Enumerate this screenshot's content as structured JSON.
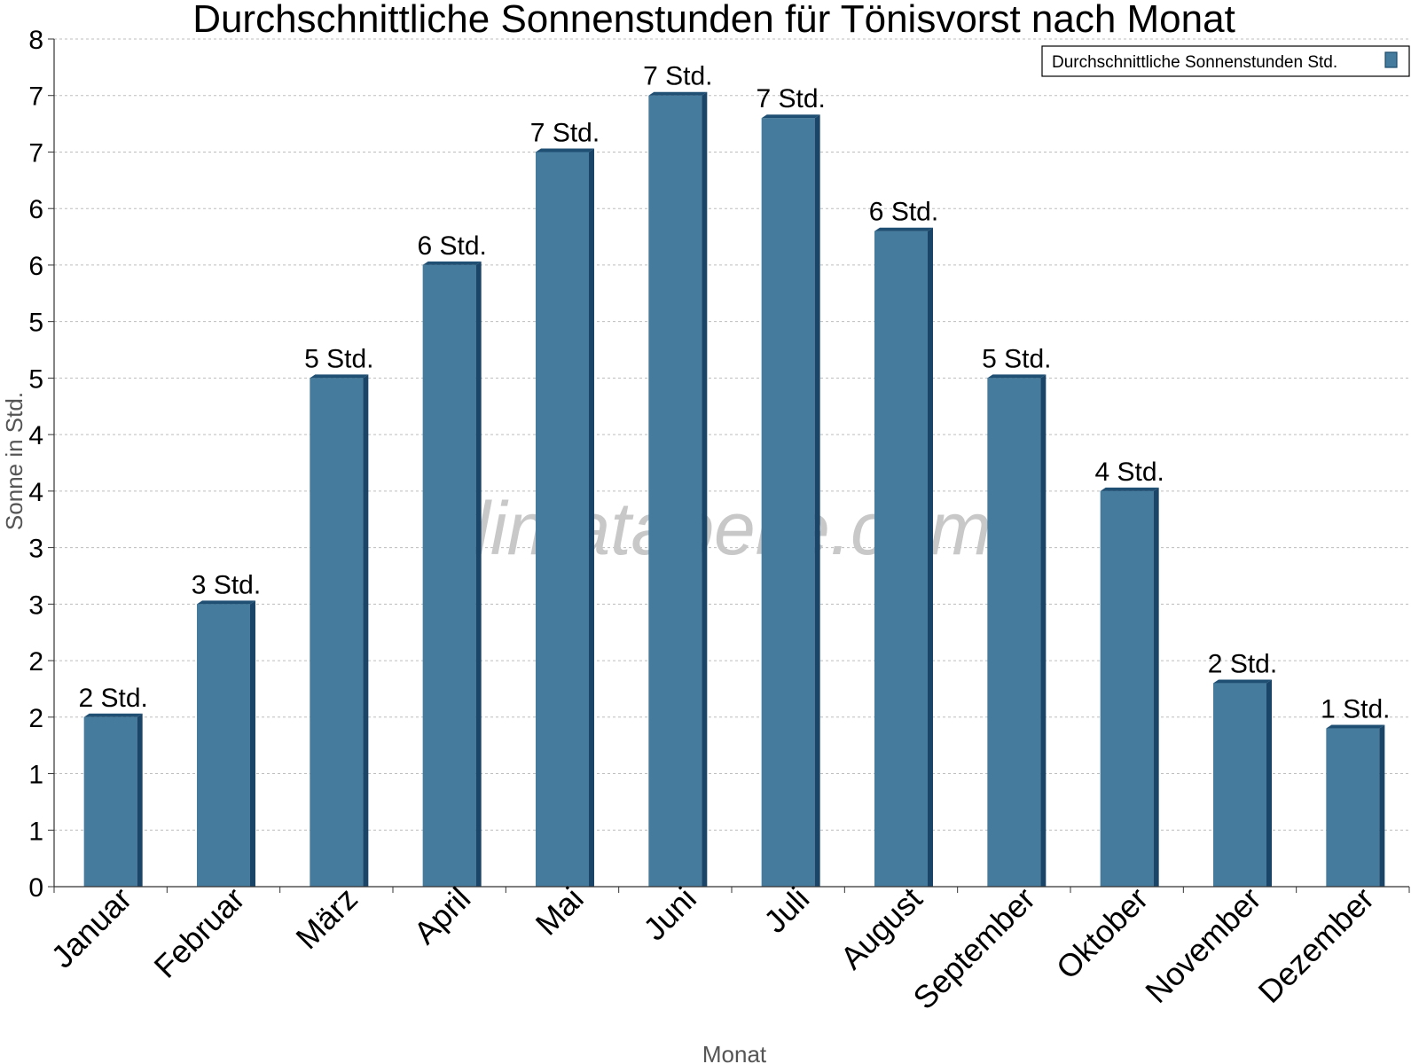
{
  "watermark": "klimatabelle.com",
  "chart_data": {
    "type": "bar",
    "title": "Durchschnittliche Sonnenstunden für Tönisvorst nach Monat",
    "xlabel": "Monat",
    "ylabel": "Sonne in Std.",
    "ylim": [
      0,
      7.5
    ],
    "yticks": [
      0,
      0.5,
      1,
      1.5,
      2,
      2.5,
      3,
      3.5,
      4,
      4.5,
      5,
      5.5,
      6,
      6.5,
      7,
      7.5
    ],
    "ytick_labels": [
      "0",
      "1",
      "1",
      "2",
      "2",
      "3",
      "3",
      "4",
      "4",
      "5",
      "5",
      "6",
      "6",
      "7",
      "7",
      "8"
    ],
    "grid": true,
    "legend_position": "top-right",
    "categories": [
      "Januar",
      "Februar",
      "März",
      "April",
      "Mai",
      "Juni",
      "Juli",
      "August",
      "September",
      "Oktober",
      "November",
      "Dezember"
    ],
    "series": [
      {
        "name": "Durchschnittliche Sonnenstunden Std.",
        "color": "#457b9d",
        "values": [
          1.5,
          2.5,
          4.5,
          5.5,
          6.5,
          7.0,
          6.8,
          5.8,
          4.5,
          3.5,
          1.8,
          1.4
        ],
        "data_labels": [
          "2 Std.",
          "3 Std.",
          "5 Std.",
          "6 Std.",
          "7 Std.",
          "7 Std.",
          "7 Std.",
          "6 Std.",
          "5 Std.",
          "4 Std.",
          "2 Std.",
          "1 Std."
        ]
      }
    ]
  }
}
